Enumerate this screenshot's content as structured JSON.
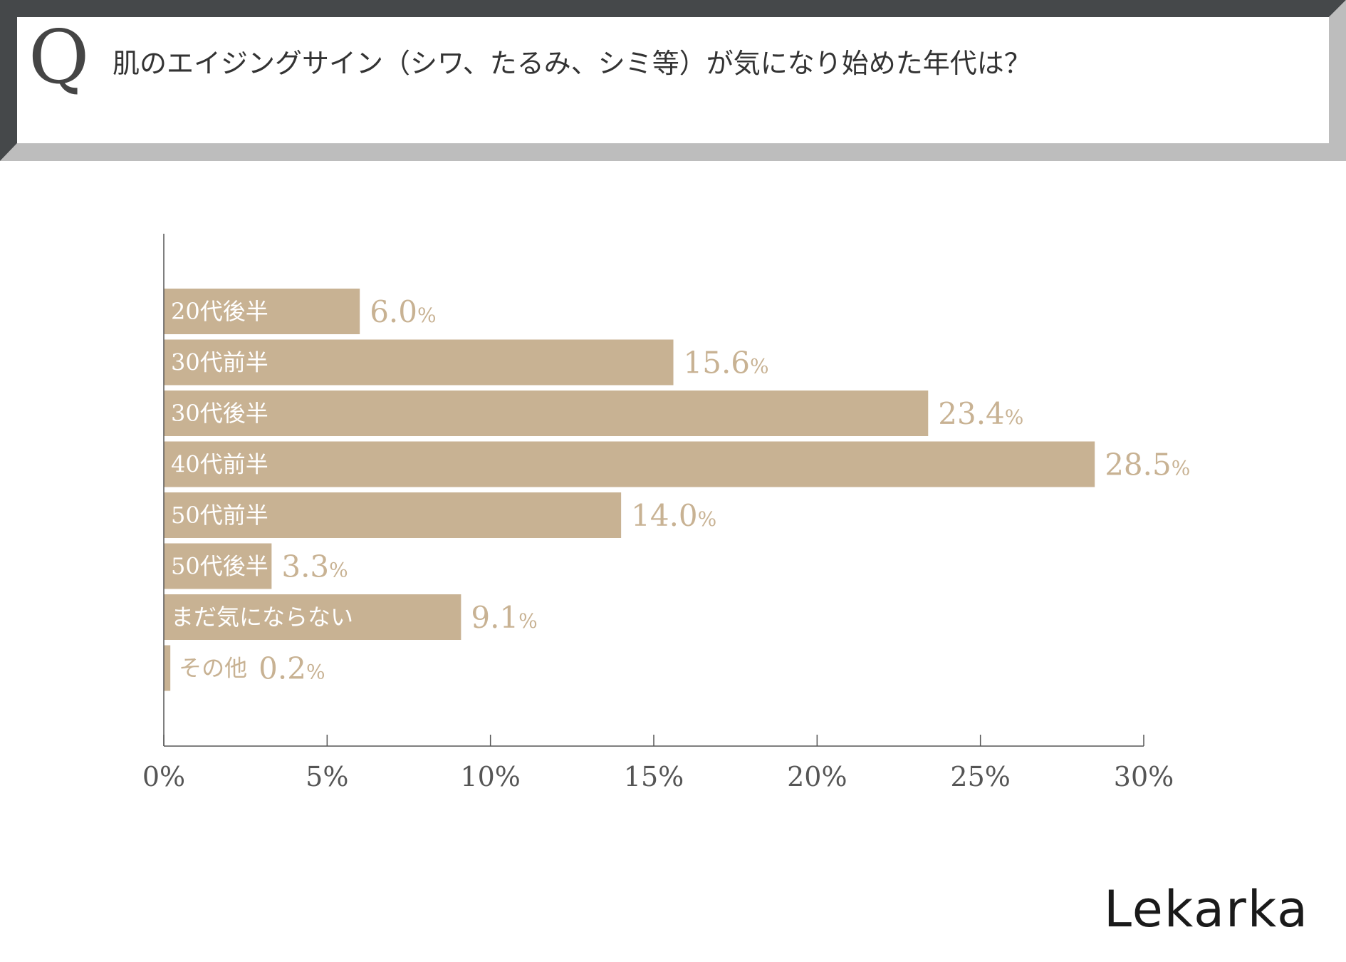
{
  "question": {
    "mark": "Q",
    "text": "肌のエイジングサイン（シワ、たるみ、シミ等）が気になり始めた年代は？"
  },
  "chart_data": {
    "type": "bar",
    "orientation": "horizontal",
    "categories": [
      "20代後半",
      "30代前半",
      "30代後半",
      "40代前半",
      "50代前半",
      "50代後半",
      "まだ気にならない",
      "その他"
    ],
    "values": [
      6.0,
      15.6,
      23.4,
      28.5,
      14.0,
      3.3,
      9.1,
      0.2
    ],
    "value_suffix": "%",
    "xlim": [
      0,
      30
    ],
    "xticks": [
      "0%",
      "5%",
      "10%",
      "15%",
      "20%",
      "25%",
      "30%"
    ],
    "grid": false,
    "colors": {
      "bar": "#c8b293",
      "bar_label_inside": "#ffffff",
      "bar_label_outside": "#c8b293",
      "value_label": "#c8b293",
      "axis": "#555555",
      "tick_label": "#555555"
    }
  },
  "brand": {
    "logo": "Lekarka"
  },
  "colors": {
    "frame_dark": "#45484a",
    "frame_light": "#bdbdbd"
  }
}
